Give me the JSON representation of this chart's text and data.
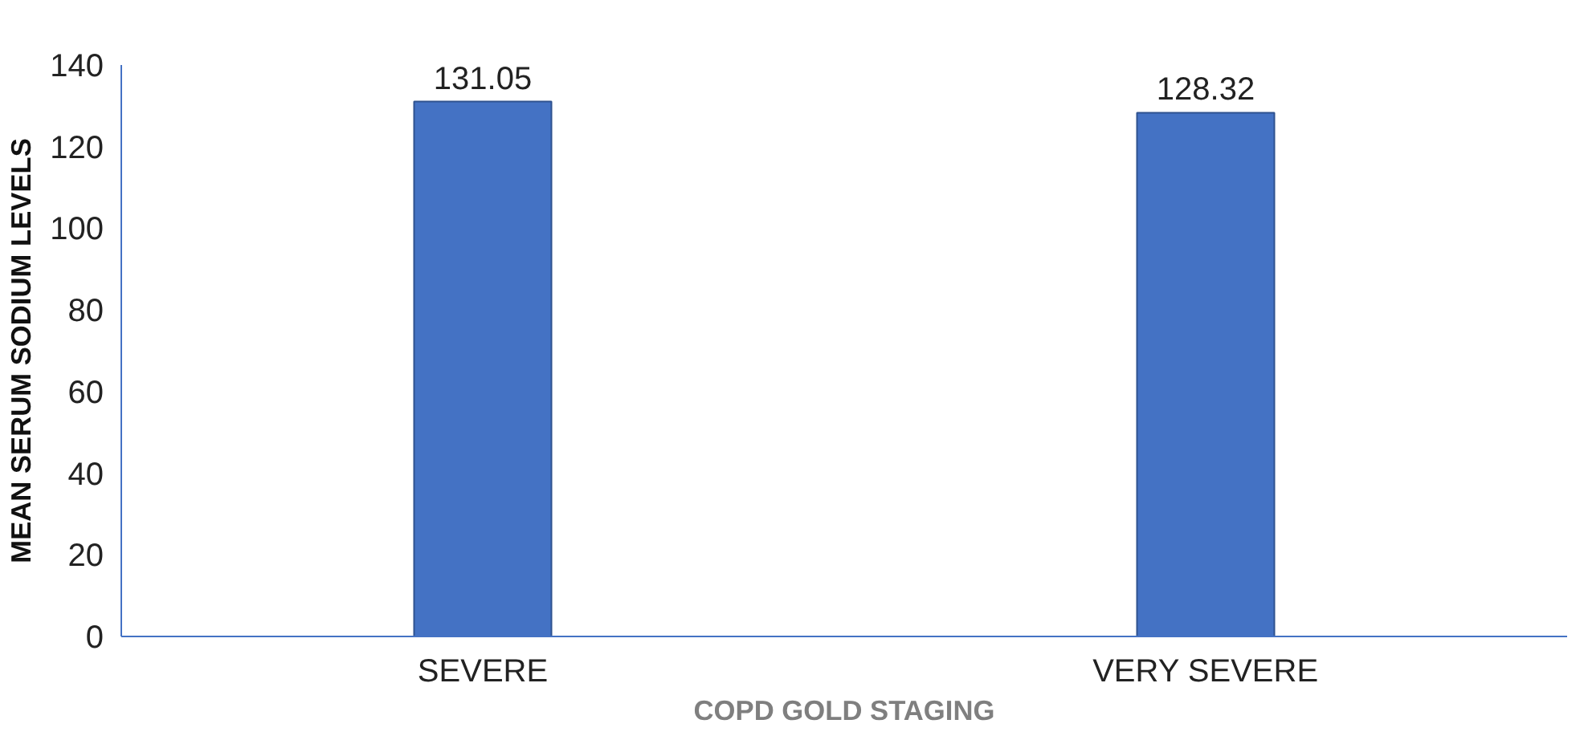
{
  "chart_data": {
    "type": "bar",
    "categories": [
      "SEVERE",
      "VERY SEVERE"
    ],
    "values": [
      131.05,
      128.32
    ],
    "color": "#4472c4",
    "xlabel": "COPD GOLD STAGING",
    "ylabel": "MEAN SERUM SODIUM LEVELS",
    "ylim": [
      0,
      140
    ],
    "yticks": [
      0,
      20,
      40,
      60,
      80,
      100,
      120,
      140
    ],
    "grid": false,
    "data_labels": true
  }
}
